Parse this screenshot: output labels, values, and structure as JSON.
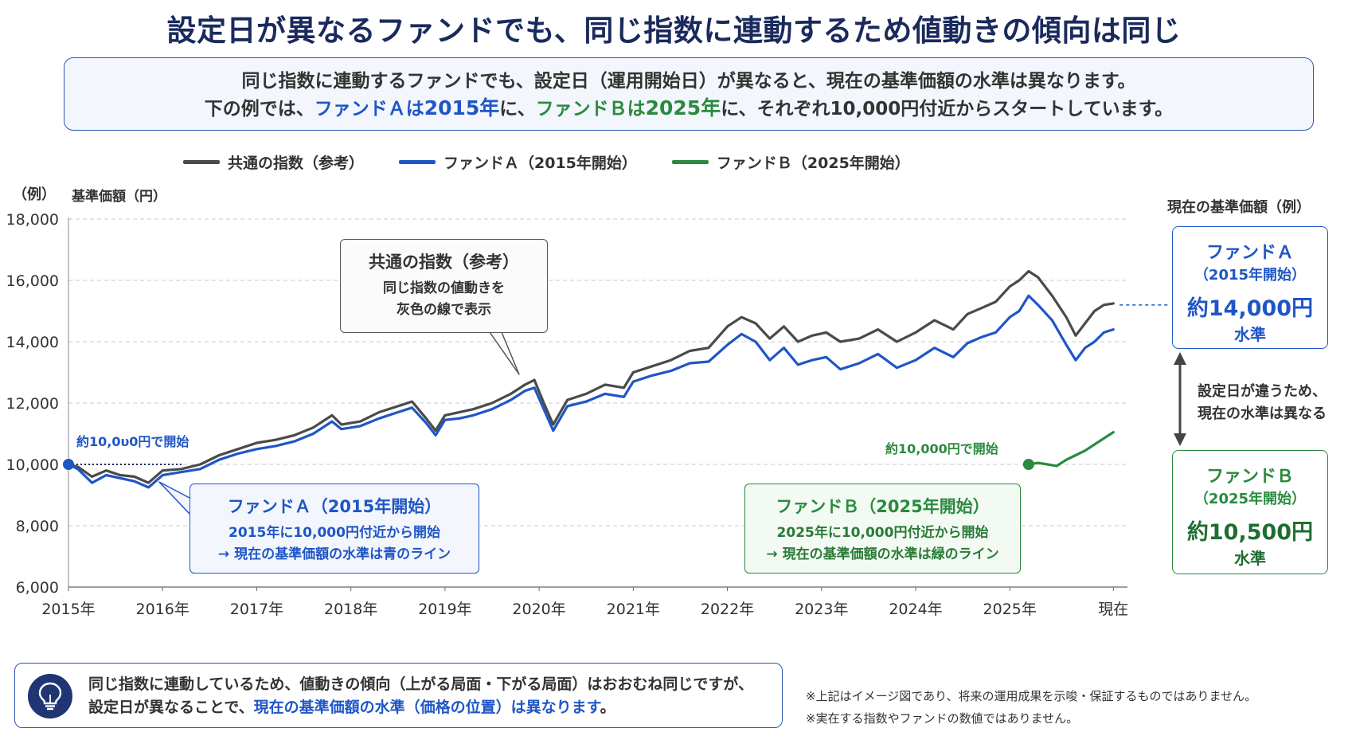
{
  "title": "設定日が異なるファンドでも、同じ指数に連動するため値動きの傾向は同じ",
  "intro": {
    "line1": "同じ指数に連動するファンドでも、設定日（運用開始日）が異なると、現在の基準価額の水準は異なります。",
    "line2_pre": "下の例では、",
    "line2_fa": "ファンドＡは",
    "line2_fa_year": "2015年",
    "line2_mid": "に、",
    "line2_fb": "ファンドＢは",
    "line2_fb_year": "2025年",
    "line2_post": "に、それぞれ10,000円付近からスタートしています。"
  },
  "legend": {
    "index": "共通の指数（参考）",
    "fund_a": "ファンドＡ（2015年開始）",
    "fund_b": "ファンドＢ（2025年開始）"
  },
  "colors": {
    "index": "#4a4a4a",
    "fund_a": "#1f56c6",
    "fund_b": "#2a8a3e",
    "navy": "#1a2a5c"
  },
  "axis": {
    "corner_label": "（例）",
    "y_label": "基準価額（円）"
  },
  "start_label_a": "約10,0υ0円で開始",
  "start_label_b": "約10,000円で開始",
  "callouts": {
    "index": {
      "title": "共通の指数（参考）",
      "line1": "同じ指数の値動きを",
      "line2": "灰色の線で表示"
    },
    "fund_a": {
      "title": "ファンドＡ（2015年開始）",
      "line1": "2015年に10,000円付近から開始",
      "line2": "→ 現在の基準価額の水準は青のライン"
    },
    "fund_b": {
      "title": "ファンドＢ（2025年開始）",
      "line1": "2025年に10,000円付近から開始",
      "line2": "→ 現在の基準価額の水準は緑のライン"
    }
  },
  "side": {
    "caption": "現在の基準価額（例）",
    "fund_a": {
      "name": "ファンドＡ",
      "sub": "（2015年開始）",
      "value": "約14,000円",
      "level": "水準"
    },
    "fund_b": {
      "name": "ファンドＢ",
      "sub": "（2025年開始）",
      "value": "約10,500円",
      "level": "水準"
    },
    "diff_line1": "設定日が違うため、",
    "diff_line2": "現在の水準は異なる"
  },
  "footer": {
    "line1": "同じ指数に連動しているため、値動きの傾向（上がる局面・下がる局面）はおおむね同じですが、",
    "line2_pre": "設定日が異なることで、",
    "line2_blue": "現在の基準価額の水準（価格の位置）は異なります",
    "line2_post": "。",
    "icon": "lightbulb-icon"
  },
  "notes": {
    "line1": "※上記はイメージ図であり、将来の運用成果を示唆・保証するものではありません。",
    "line2": "※実在する指数やファンドの数値ではありません。"
  },
  "chart_data": {
    "type": "line",
    "xlabel": "",
    "ylabel": "基準価額（円）",
    "ylim": [
      6000,
      18000
    ],
    "yticks": [
      "6,000",
      "8,000",
      "10,000",
      "12,000",
      "14,000",
      "16,000",
      "18,000"
    ],
    "ytick_values": [
      6000,
      8000,
      10000,
      12000,
      14000,
      16000,
      18000
    ],
    "xticks": [
      "2015年",
      "2016年",
      "2017年",
      "2018年",
      "2019年",
      "2020年",
      "2021年",
      "2022年",
      "2023年",
      "2024年",
      "2025年",
      "現在"
    ],
    "xtick_values": [
      2015,
      2016,
      2017,
      2018,
      2019,
      2020,
      2021,
      2022,
      2023,
      2024,
      2025,
      2026.1
    ],
    "grid": "horizontal-dashed",
    "legend_position": "top",
    "series": [
      {
        "name": "共通の指数（参考）",
        "color": "#4a4a4a",
        "points": [
          [
            2015.0,
            10000
          ],
          [
            2015.1,
            9920
          ],
          [
            2015.25,
            9600
          ],
          [
            2015.4,
            9800
          ],
          [
            2015.55,
            9650
          ],
          [
            2015.7,
            9600
          ],
          [
            2015.85,
            9400
          ],
          [
            2016.0,
            9800
          ],
          [
            2016.2,
            9850
          ],
          [
            2016.4,
            10000
          ],
          [
            2016.6,
            10300
          ],
          [
            2016.8,
            10500
          ],
          [
            2017.0,
            10700
          ],
          [
            2017.2,
            10800
          ],
          [
            2017.4,
            10950
          ],
          [
            2017.6,
            11200
          ],
          [
            2017.8,
            11600
          ],
          [
            2017.9,
            11300
          ],
          [
            2018.1,
            11400
          ],
          [
            2018.3,
            11700
          ],
          [
            2018.5,
            11900
          ],
          [
            2018.65,
            12050
          ],
          [
            2018.8,
            11500
          ],
          [
            2018.9,
            11100
          ],
          [
            2019.0,
            11600
          ],
          [
            2019.15,
            11700
          ],
          [
            2019.3,
            11800
          ],
          [
            2019.5,
            12000
          ],
          [
            2019.7,
            12300
          ],
          [
            2019.85,
            12600
          ],
          [
            2019.95,
            12750
          ],
          [
            2020.05,
            12000
          ],
          [
            2020.15,
            11300
          ],
          [
            2020.3,
            12100
          ],
          [
            2020.5,
            12300
          ],
          [
            2020.7,
            12600
          ],
          [
            2020.9,
            12500
          ],
          [
            2021.0,
            13000
          ],
          [
            2021.2,
            13200
          ],
          [
            2021.4,
            13400
          ],
          [
            2021.6,
            13700
          ],
          [
            2021.8,
            13800
          ],
          [
            2022.0,
            14500
          ],
          [
            2022.15,
            14800
          ],
          [
            2022.3,
            14600
          ],
          [
            2022.45,
            14100
          ],
          [
            2022.6,
            14500
          ],
          [
            2022.75,
            14000
          ],
          [
            2022.9,
            14200
          ],
          [
            2023.05,
            14300
          ],
          [
            2023.2,
            14000
          ],
          [
            2023.4,
            14100
          ],
          [
            2023.6,
            14400
          ],
          [
            2023.8,
            14000
          ],
          [
            2024.0,
            14300
          ],
          [
            2024.2,
            14700
          ],
          [
            2024.4,
            14400
          ],
          [
            2024.55,
            14900
          ],
          [
            2024.7,
            15100
          ],
          [
            2024.85,
            15300
          ],
          [
            2025.0,
            15800
          ],
          [
            2025.1,
            16000
          ],
          [
            2025.2,
            16300
          ],
          [
            2025.3,
            16100
          ],
          [
            2025.45,
            15500
          ],
          [
            2025.6,
            14800
          ],
          [
            2025.7,
            14200
          ],
          [
            2025.8,
            14600
          ],
          [
            2025.9,
            15000
          ],
          [
            2026.0,
            15200
          ],
          [
            2026.1,
            15250
          ]
        ]
      },
      {
        "name": "ファンドＡ（2015年開始）",
        "color": "#1f56c6",
        "points": [
          [
            2015.0,
            10000
          ],
          [
            2015.1,
            9850
          ],
          [
            2015.25,
            9400
          ],
          [
            2015.4,
            9650
          ],
          [
            2015.55,
            9550
          ],
          [
            2015.7,
            9450
          ],
          [
            2015.85,
            9250
          ],
          [
            2016.0,
            9650
          ],
          [
            2016.2,
            9750
          ],
          [
            2016.4,
            9850
          ],
          [
            2016.6,
            10150
          ],
          [
            2016.8,
            10350
          ],
          [
            2017.0,
            10500
          ],
          [
            2017.2,
            10600
          ],
          [
            2017.4,
            10750
          ],
          [
            2017.6,
            11000
          ],
          [
            2017.8,
            11400
          ],
          [
            2017.9,
            11150
          ],
          [
            2018.1,
            11250
          ],
          [
            2018.3,
            11500
          ],
          [
            2018.5,
            11700
          ],
          [
            2018.65,
            11850
          ],
          [
            2018.8,
            11350
          ],
          [
            2018.9,
            10950
          ],
          [
            2019.0,
            11450
          ],
          [
            2019.15,
            11500
          ],
          [
            2019.3,
            11600
          ],
          [
            2019.5,
            11800
          ],
          [
            2019.7,
            12100
          ],
          [
            2019.85,
            12400
          ],
          [
            2019.95,
            12500
          ],
          [
            2020.05,
            11800
          ],
          [
            2020.15,
            11100
          ],
          [
            2020.3,
            11900
          ],
          [
            2020.5,
            12050
          ],
          [
            2020.7,
            12300
          ],
          [
            2020.9,
            12200
          ],
          [
            2021.0,
            12700
          ],
          [
            2021.2,
            12900
          ],
          [
            2021.4,
            13050
          ],
          [
            2021.6,
            13300
          ],
          [
            2021.8,
            13350
          ],
          [
            2022.0,
            13900
          ],
          [
            2022.15,
            14250
          ],
          [
            2022.3,
            14000
          ],
          [
            2022.45,
            13400
          ],
          [
            2022.6,
            13800
          ],
          [
            2022.75,
            13250
          ],
          [
            2022.9,
            13400
          ],
          [
            2023.05,
            13500
          ],
          [
            2023.2,
            13100
          ],
          [
            2023.4,
            13300
          ],
          [
            2023.6,
            13600
          ],
          [
            2023.8,
            13150
          ],
          [
            2024.0,
            13400
          ],
          [
            2024.2,
            13800
          ],
          [
            2024.4,
            13500
          ],
          [
            2024.55,
            13950
          ],
          [
            2024.7,
            14150
          ],
          [
            2024.85,
            14300
          ],
          [
            2025.0,
            14800
          ],
          [
            2025.1,
            15000
          ],
          [
            2025.2,
            15500
          ],
          [
            2025.3,
            15200
          ],
          [
            2025.45,
            14700
          ],
          [
            2025.6,
            13900
          ],
          [
            2025.7,
            13400
          ],
          [
            2025.8,
            13800
          ],
          [
            2025.9,
            14000
          ],
          [
            2026.0,
            14300
          ],
          [
            2026.1,
            14400
          ]
        ]
      },
      {
        "name": "ファンドＢ（2025年開始）",
        "color": "#2a8a3e",
        "points": [
          [
            2025.2,
            10000
          ],
          [
            2025.3,
            10050
          ],
          [
            2025.4,
            10000
          ],
          [
            2025.5,
            9950
          ],
          [
            2025.6,
            10150
          ],
          [
            2025.7,
            10300
          ],
          [
            2025.8,
            10450
          ],
          [
            2025.9,
            10650
          ],
          [
            2026.0,
            10850
          ],
          [
            2026.1,
            11050
          ]
        ]
      }
    ]
  }
}
